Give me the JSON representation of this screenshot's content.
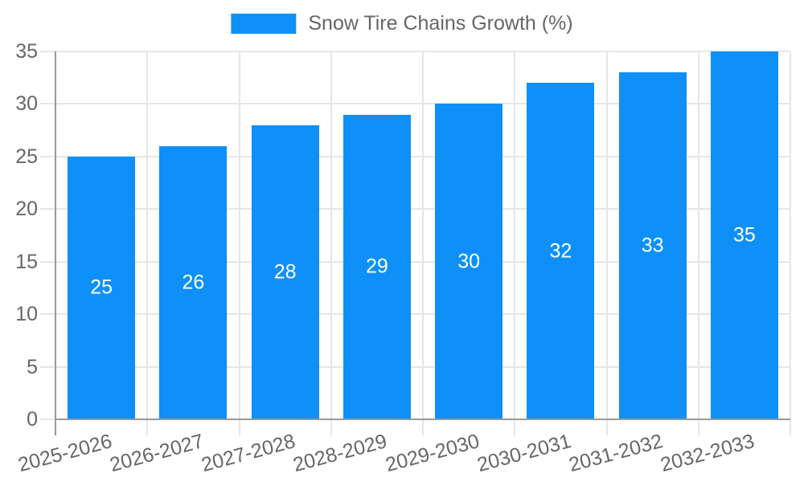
{
  "chart_data": {
    "type": "bar",
    "title": "Snow Tire Chains Growth (%)",
    "legend": {
      "label": "Snow Tire Chains Growth (%)",
      "position": "top-center"
    },
    "categories": [
      "2025-2026",
      "2026-2027",
      "2027-2028",
      "2028-2029",
      "2029-2030",
      "2030-2031",
      "2031-2032",
      "2032-2033"
    ],
    "values": [
      25,
      26,
      28,
      29,
      30,
      32,
      33,
      35
    ],
    "xlabel": "",
    "ylabel": "",
    "ylim": [
      0,
      35
    ],
    "yticks": [
      0,
      5,
      10,
      15,
      20,
      25,
      30,
      35
    ],
    "grid": true,
    "x_tick_rotation_deg": -15,
    "colors": {
      "bar": "#0e90f8",
      "bar_value_text": "#ffffff",
      "axis_text": "#666666",
      "legend_text": "#666666",
      "gridline": "#e6e6e6",
      "axis_line": "#999999",
      "background": "#ffffff"
    }
  }
}
